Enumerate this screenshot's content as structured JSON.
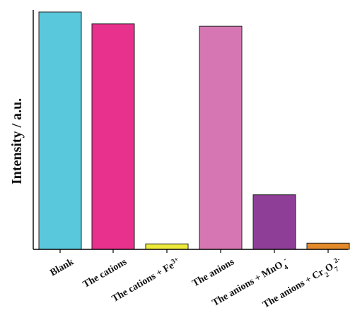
{
  "chart_data": {
    "type": "bar",
    "title": "",
    "xlabel": "",
    "ylabel": "Intensity / a.u.",
    "ylim": [
      0,
      100
    ],
    "grid": false,
    "y_ticks_shown": false,
    "categories": [
      "Blank",
      "The cations",
      "The cations + Fe3+",
      "The anions",
      "The anions + MnO4-",
      "The anions + Cr2O72-"
    ],
    "category_labels": [
      [
        {
          "t": "Blank"
        }
      ],
      [
        {
          "t": "The cations"
        }
      ],
      [
        {
          "t": "The cations + Fe"
        },
        {
          "t": "3+",
          "s": "sup"
        }
      ],
      [
        {
          "t": "The anions"
        }
      ],
      [
        {
          "t": "The anions + MnO"
        },
        {
          "t": "4",
          "s": "sub"
        },
        {
          "t": "-",
          "s": "sup"
        }
      ],
      [
        {
          "t": "The anions + Cr"
        },
        {
          "t": "2",
          "s": "sub"
        },
        {
          "t": "O"
        },
        {
          "t": "7",
          "s": "sub"
        },
        {
          "t": "2-",
          "s": "sup"
        }
      ]
    ],
    "values": [
      100,
      95,
      2.3,
      94,
      23,
      2.6
    ],
    "colors": [
      "#5ac8dc",
      "#e8318c",
      "#eeea3c",
      "#d677b3",
      "#8f3e98",
      "#e38a2c"
    ]
  }
}
